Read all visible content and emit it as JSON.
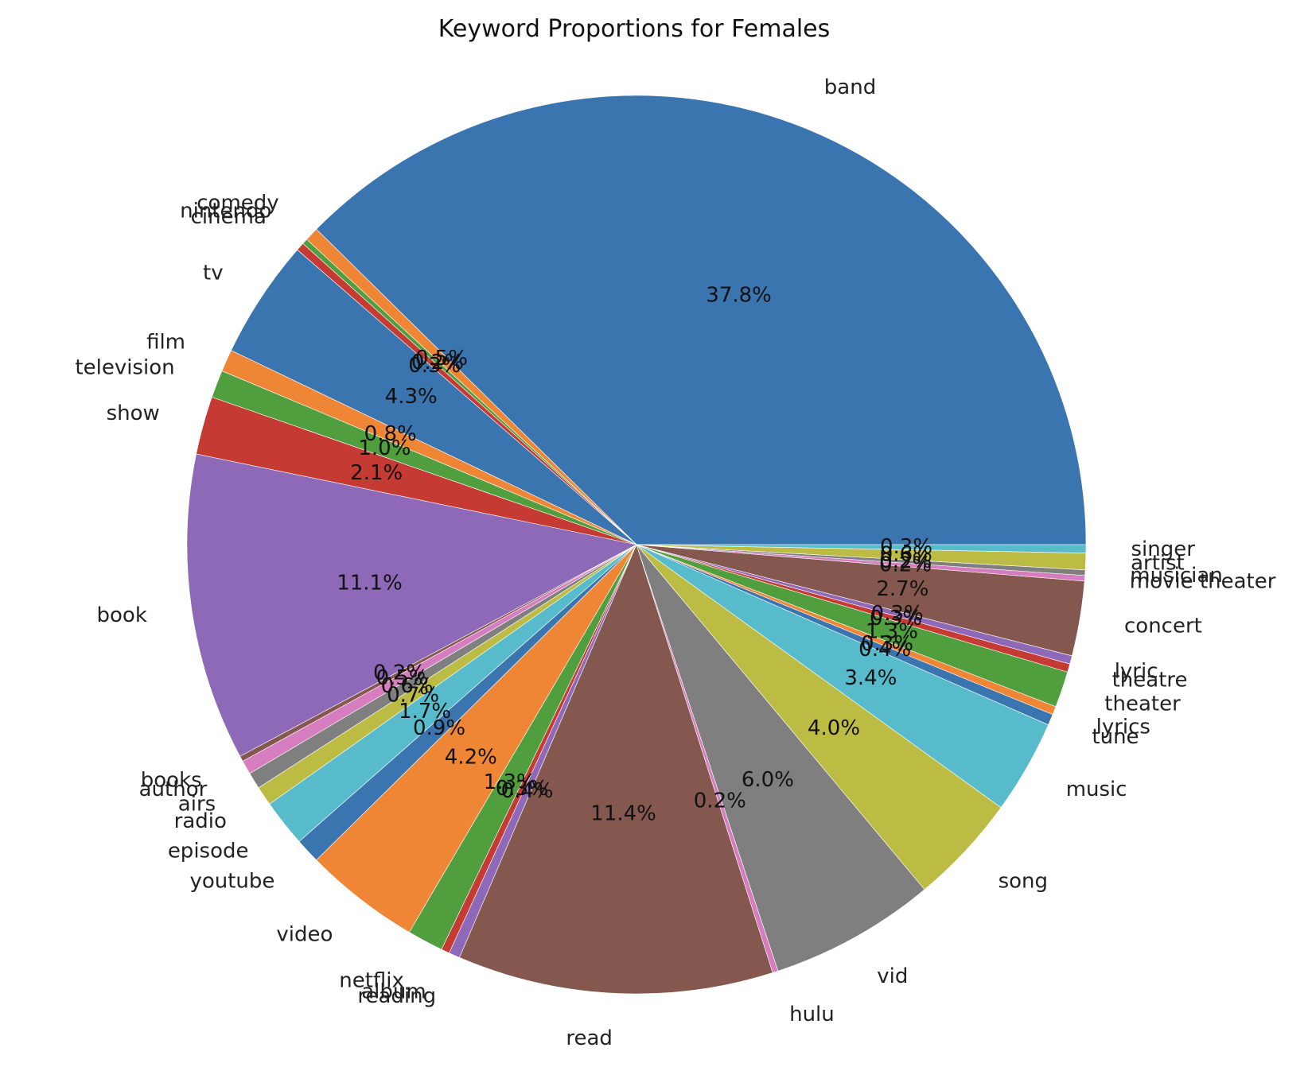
{
  "chart_data": {
    "type": "pie",
    "title": "Keyword Proportions for Females",
    "start_angle_deg": 0,
    "direction": "counterclockwise",
    "slices": [
      {
        "label": "band",
        "value": 37.8,
        "pct_text": "37.8%",
        "color": "#3b75af"
      },
      {
        "label": "comedy",
        "value": 0.5,
        "pct_text": "0.5%",
        "color": "#ef8636"
      },
      {
        "label": "nintendo",
        "value": 0.2,
        "pct_text": "0.2%",
        "color": "#519e3e"
      },
      {
        "label": "cinema",
        "value": 0.3,
        "pct_text": "0.3%",
        "color": "#c53a32"
      },
      {
        "label": "tv",
        "value": 4.3,
        "pct_text": "4.3%",
        "color": "#3b75af"
      },
      {
        "label": "film",
        "value": 0.8,
        "pct_text": "0.8%",
        "color": "#ef8636"
      },
      {
        "label": "television",
        "value": 1.0,
        "pct_text": "1.0%",
        "color": "#519e3e"
      },
      {
        "label": "show",
        "value": 2.1,
        "pct_text": "2.1%",
        "color": "#c53a32"
      },
      {
        "label": "book",
        "value": 11.1,
        "pct_text": "11.1%",
        "color": "#8d69b8"
      },
      {
        "label": "books",
        "value": 0.2,
        "pct_text": "0.2%",
        "color": "#84584e"
      },
      {
        "label": "author",
        "value": 0.5,
        "pct_text": "0.5%",
        "color": "#d57dbf"
      },
      {
        "label": "airs",
        "value": 0.6,
        "pct_text": "0.6%",
        "color": "#7f7f7f"
      },
      {
        "label": "radio",
        "value": 0.7,
        "pct_text": "0.7%",
        "color": "#bcbc45"
      },
      {
        "label": "episode",
        "value": 1.7,
        "pct_text": "1.7%",
        "color": "#58bbcc"
      },
      {
        "label": "youtube",
        "value": 0.9,
        "pct_text": "0.9%",
        "color": "#3b75af"
      },
      {
        "label": "video",
        "value": 4.2,
        "pct_text": "4.2%",
        "color": "#ef8636"
      },
      {
        "label": "netflix",
        "value": 1.3,
        "pct_text": "1.3%",
        "color": "#519e3e"
      },
      {
        "label": "album",
        "value": 0.3,
        "pct_text": "0.3%",
        "color": "#c53a32"
      },
      {
        "label": "reading",
        "value": 0.4,
        "pct_text": "0.4%",
        "color": "#8d69b8"
      },
      {
        "label": "read",
        "value": 11.4,
        "pct_text": "11.4%",
        "color": "#84584e"
      },
      {
        "label": "hulu",
        "value": 0.2,
        "pct_text": "0.2%",
        "color": "#d57dbf"
      },
      {
        "label": "vid",
        "value": 6.0,
        "pct_text": "6.0%",
        "color": "#7f7f7f"
      },
      {
        "label": "song",
        "value": 4.0,
        "pct_text": "4.0%",
        "color": "#bcbc45"
      },
      {
        "label": "music",
        "value": 3.4,
        "pct_text": "3.4%",
        "color": "#58bbcc"
      },
      {
        "label": "tune",
        "value": 0.4,
        "pct_text": "0.4%",
        "color": "#3b75af"
      },
      {
        "label": "lyrics",
        "value": 0.3,
        "pct_text": "0.3%",
        "color": "#ef8636"
      },
      {
        "label": "theater",
        "value": 1.3,
        "pct_text": "1.3%",
        "color": "#519e3e"
      },
      {
        "label": "theatre",
        "value": 0.3,
        "pct_text": "0.3%",
        "color": "#c53a32"
      },
      {
        "label": "lyric",
        "value": 0.3,
        "pct_text": "0.3%",
        "color": "#8d69b8"
      },
      {
        "label": "concert",
        "value": 2.7,
        "pct_text": "2.7%",
        "color": "#84584e"
      },
      {
        "label": "movie theater",
        "value": 0.2,
        "pct_text": "0.2%",
        "color": "#d57dbf"
      },
      {
        "label": "musician",
        "value": 0.2,
        "pct_text": "0.2%",
        "color": "#7f7f7f"
      },
      {
        "label": "artist",
        "value": 0.6,
        "pct_text": "0.6%",
        "color": "#bcbc45"
      },
      {
        "label": "singer",
        "value": 0.3,
        "pct_text": "0.3%",
        "color": "#58bbcc"
      }
    ]
  }
}
